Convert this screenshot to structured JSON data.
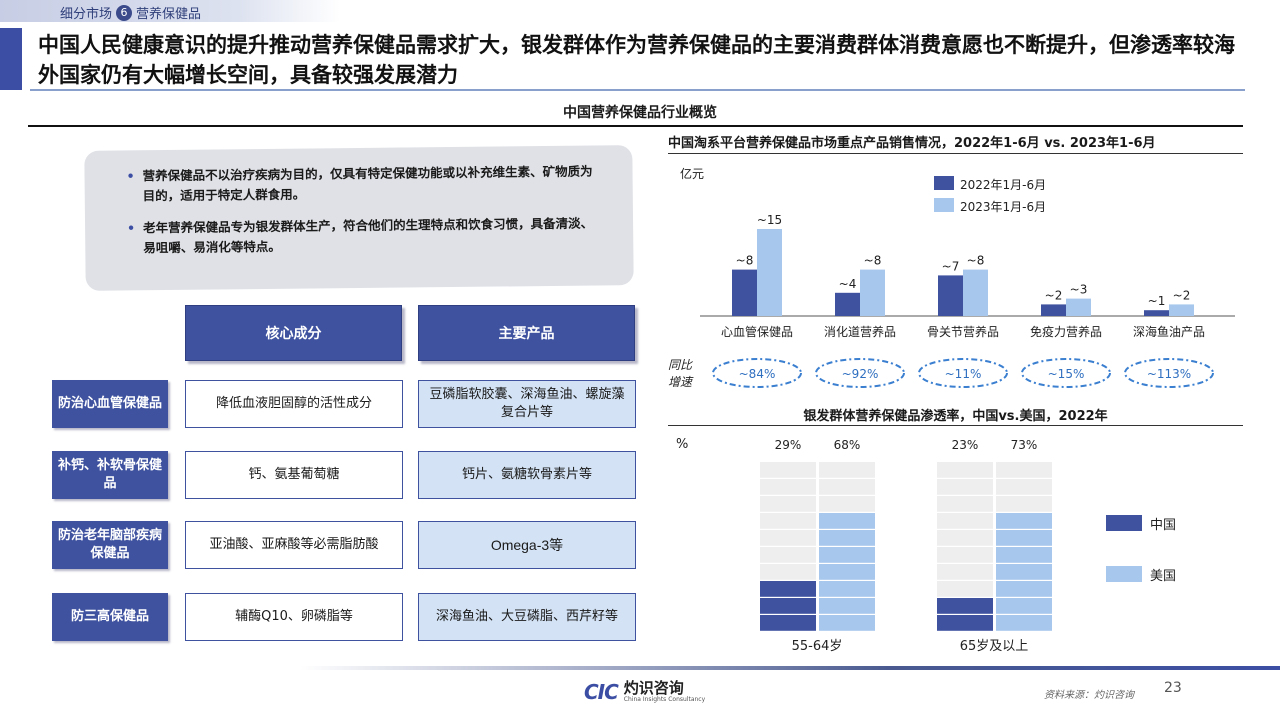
{
  "breadcrumb": {
    "section": "细分市场",
    "number": "6",
    "current": "营养保健品"
  },
  "headline": "中国人民健康意识的提升推动营养保健品需求扩大，银发群体作为营养保健品的主要消费群体消费意愿也不断提升，但渗透率较海外国家仍有大幅增长空间，具备较强发展潜力",
  "section_title": "中国营养保健品行业概览",
  "notes": [
    "营养保健品不以治疗疾病为目的，仅具有特定保健功能或以补充维生素、矿物质为目的，适用于特定人群食用。",
    "老年营养保健品专为银发群体生产，符合他们的生理特点和饮食习惯，具备清淡、易咀嚼、易消化等特点。"
  ],
  "table": {
    "headers": [
      "核心成分",
      "主要产品"
    ],
    "rows": [
      {
        "label": "防治心血管保健品",
        "ingredient": "降低血液胆固醇的活性成分",
        "products": "豆磷脂软胶囊、深海鱼油、螺旋藻复合片等"
      },
      {
        "label": "补钙、补软骨保健品",
        "ingredient": "钙、氨基葡萄糖",
        "products": "钙片、氨糖软骨素片等"
      },
      {
        "label": "防治老年脑部疾病保健品",
        "ingredient": "亚油酸、亚麻酸等必需脂肪酸",
        "products": "Omega-3等"
      },
      {
        "label": "防三高保健品",
        "ingredient": "辅酶Q10、卵磷脂等",
        "products": "深海鱼油、大豆磷脂、西芹籽等"
      }
    ]
  },
  "colors": {
    "primary": "#3f529f",
    "light": "#a7c7ec",
    "pale": "#d3e2f4",
    "gray": "#eeeeee"
  },
  "chart_data": [
    {
      "type": "bar",
      "title": "中国淘系平台营养保健品市场重点产品销售情况，2022年1-6月 vs. 2023年1-6月",
      "ylabel": "亿元",
      "categories": [
        "心血管保健品",
        "消化道营养品",
        "骨关节营养品",
        "免疫力营养品",
        "深海鱼油产品"
      ],
      "series": [
        {
          "name": "2022年1月-6月",
          "values": [
            8,
            4,
            7,
            2,
            1
          ],
          "labels": [
            "~8",
            "~4",
            "~7",
            "~2",
            "~1"
          ]
        },
        {
          "name": "2023年1月-6月",
          "values": [
            15,
            8,
            8,
            3,
            2
          ],
          "labels": [
            "~15",
            "~8",
            "~8",
            "~3",
            "~2"
          ]
        }
      ],
      "growth_label": "同比增速",
      "growth": [
        "~84%",
        "~92%",
        "~11%",
        "~15%",
        "~113%"
      ],
      "ylim": [
        0,
        16
      ]
    },
    {
      "type": "bar",
      "title": "银发群体营养保健品渗透率，中国vs.美国，2022年",
      "ylabel": "%",
      "categories": [
        "55-64岁",
        "65岁及以上"
      ],
      "series": [
        {
          "name": "中国",
          "values": [
            29,
            23
          ],
          "labels": [
            "29%",
            "23%"
          ]
        },
        {
          "name": "美国",
          "values": [
            68,
            73
          ],
          "labels": [
            "68%",
            "73%"
          ]
        }
      ],
      "ylim": [
        0,
        100
      ]
    }
  ],
  "footer": {
    "logo_mark": "CIC",
    "logo_cn": "灼识咨询",
    "logo_en": "China Insights Consultancy",
    "source": "资料来源：灼识咨询",
    "page": "23"
  }
}
